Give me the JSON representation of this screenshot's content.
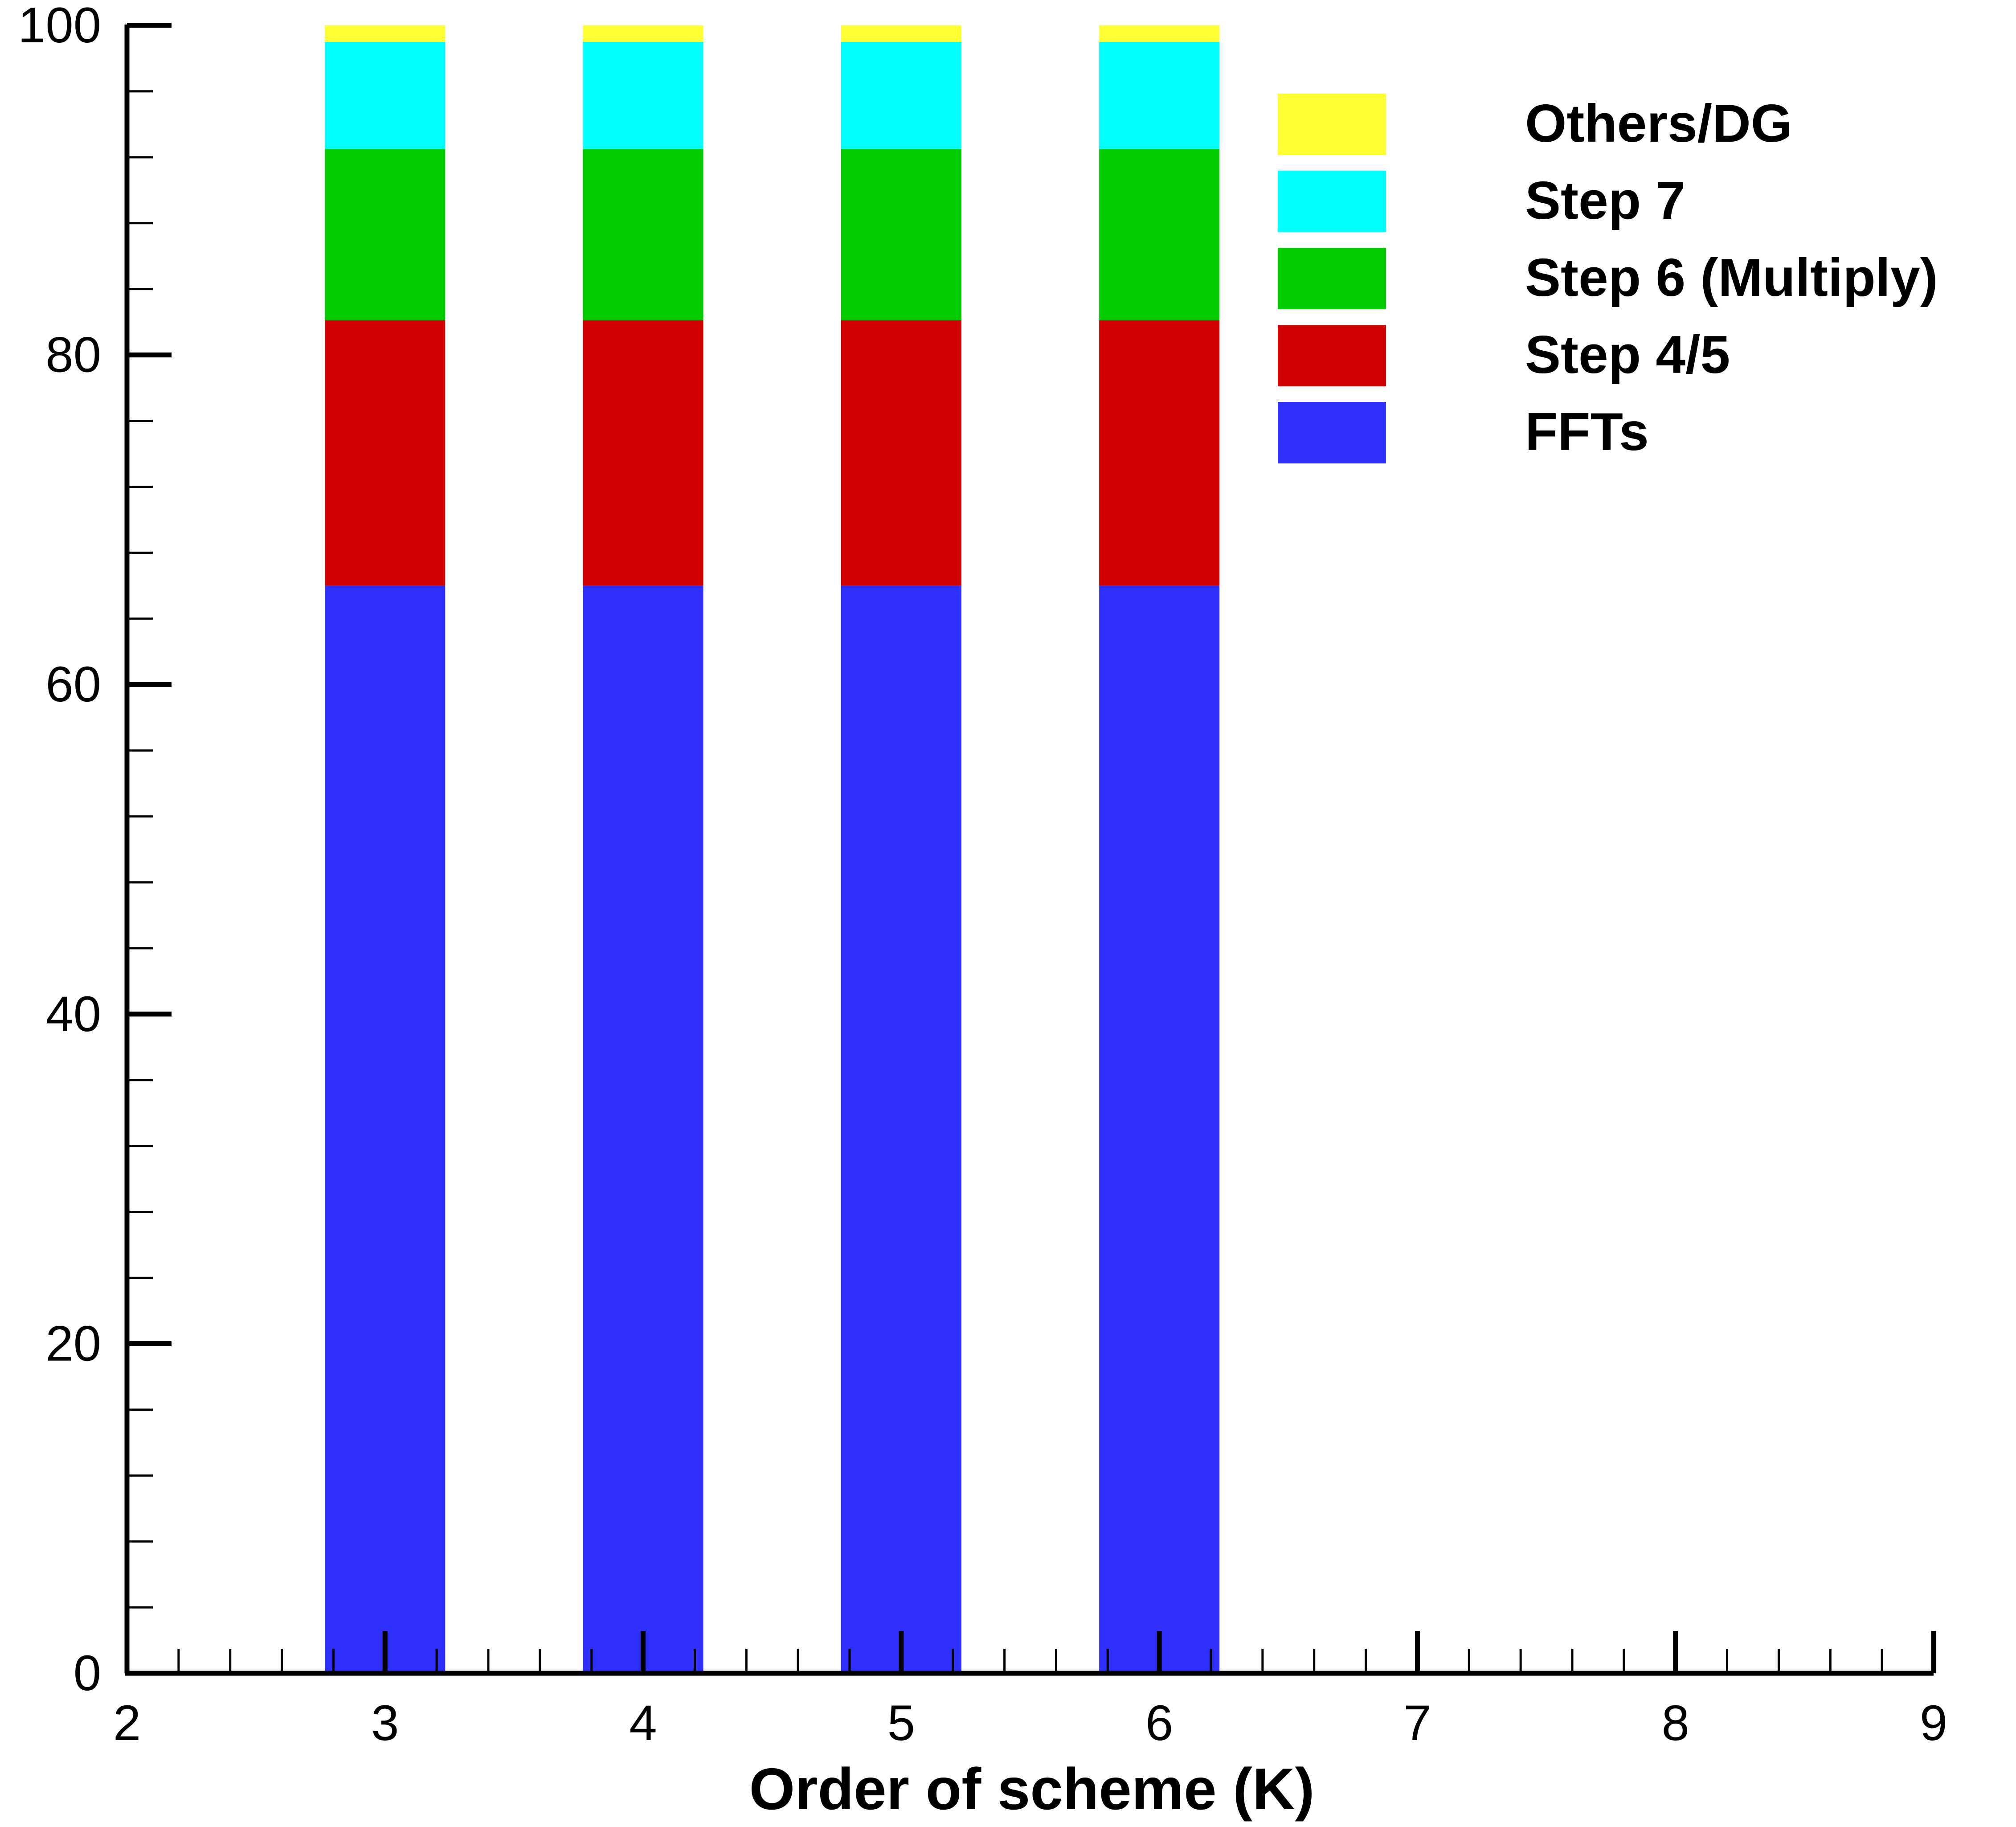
{
  "chart_data": {
    "type": "bar",
    "stacked": true,
    "title": "",
    "xlabel": "Order of scheme (K)",
    "ylabel": "",
    "xlim": [
      2,
      9
    ],
    "ylim": [
      0,
      100
    ],
    "x_ticks": [
      2,
      3,
      4,
      5,
      6,
      7,
      8,
      9
    ],
    "y_ticks": [
      0,
      20,
      40,
      60,
      80,
      100
    ],
    "grid": false,
    "legend_position": "top-right",
    "x": [
      3,
      4,
      5,
      6
    ],
    "series": [
      {
        "name": "FFTs",
        "color": "#3030ff",
        "values": [
          66.0,
          66.0,
          66.0,
          66.0
        ]
      },
      {
        "name": "Step 4/5",
        "color": "#d00000",
        "values": [
          16.1,
          16.1,
          16.1,
          16.1
        ]
      },
      {
        "name": "Step 6 (Multiply)",
        "color": "#00cc00",
        "values": [
          10.4,
          10.4,
          10.4,
          10.4
        ]
      },
      {
        "name": "Step 7",
        "color": "#00ffff",
        "values": [
          6.5,
          6.5,
          6.5,
          6.5
        ]
      },
      {
        "name": "Others/DG",
        "color": "#ffff33",
        "values": [
          1.0,
          1.0,
          1.0,
          1.0
        ]
      }
    ]
  }
}
